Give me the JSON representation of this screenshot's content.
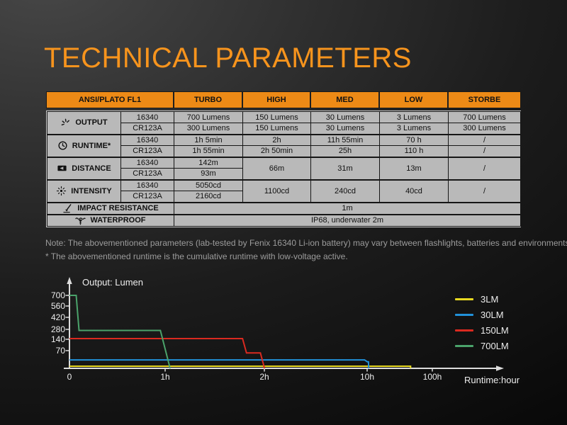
{
  "page_title": "TECHNICAL PARAMETERS",
  "colors": {
    "accent_orange": "#f7941d",
    "table_header_bg": "#ed8a16",
    "table_cell_bg": "#b9b9b9",
    "series_3lm": "#e8d921",
    "series_30lm": "#2191d9",
    "series_150lm": "#da2a20",
    "series_700lm": "#4ba36b"
  },
  "table": {
    "header": [
      "ANSI/PLATO FL1",
      "TURBO",
      "HIGH",
      "MED",
      "LOW",
      "STORBE"
    ],
    "rows": {
      "output": {
        "label": "OUTPUT",
        "batteries": [
          "16340",
          "CR123A"
        ],
        "values": [
          [
            "700 Lumens",
            "150 Lumens",
            "30 Lumens",
            "3 Lumens",
            "700 Lumens"
          ],
          [
            "300 Lumens",
            "150 Lumens",
            "30 Lumens",
            "3 Lumens",
            "300 Lumens"
          ]
        ]
      },
      "runtime": {
        "label": "RUNTIME*",
        "batteries": [
          "16340",
          "CR123A"
        ],
        "values": [
          [
            "1h 5min",
            "2h",
            "11h 55min",
            "70 h",
            "/"
          ],
          [
            "1h 55min",
            "2h 50min",
            "25h",
            "110 h",
            "/"
          ]
        ]
      },
      "distance": {
        "label": "DISTANCE",
        "batteries": [
          "16340",
          "CR123A"
        ],
        "turbo": [
          "142m",
          "93m"
        ],
        "merged": [
          "66m",
          "31m",
          "13m",
          "/"
        ]
      },
      "intensity": {
        "label": "INTENSITY",
        "batteries": [
          "16340",
          "CR123A"
        ],
        "turbo": [
          "5050cd",
          "2160cd"
        ],
        "merged": [
          "1100cd",
          "240cd",
          "40cd",
          "/"
        ]
      },
      "impact": {
        "label": "IMPACT RESISTANCE",
        "value": "1m"
      },
      "waterproof": {
        "label": "WATERPROOF",
        "value": "IP68, underwater 2m"
      }
    }
  },
  "notes": [
    "Note: The abovementioned parameters (lab-tested by Fenix 16340 Li-ion battery) may vary between flashlights, batteries and environments.",
    "* The abovementioned runtime is the cumulative runtime with low-voltage active."
  ],
  "chart_data": {
    "type": "line",
    "title": "Output: Lumen",
    "xlabel": "Runtime:hour",
    "x_ticks": [
      "0",
      "1h",
      "2h",
      "10h",
      "100h"
    ],
    "x_tick_values": [
      0,
      1,
      2,
      10,
      100
    ],
    "y_ticks": [
      700,
      560,
      420,
      280,
      140,
      70
    ],
    "legend_position": "right",
    "legend": [
      {
        "name": "3LM",
        "color": "#e8d921"
      },
      {
        "name": "30LM",
        "color": "#2191d9"
      },
      {
        "name": "150LM",
        "color": "#da2a20"
      },
      {
        "name": "700LM",
        "color": "#4ba36b"
      }
    ],
    "series": [
      {
        "name": "3LM",
        "color": "#e8d921",
        "points": [
          [
            0,
            3
          ],
          [
            70,
            3
          ],
          [
            70,
            0
          ]
        ]
      },
      {
        "name": "30LM",
        "color": "#2191d9",
        "points": [
          [
            0,
            30
          ],
          [
            9.8,
            30
          ],
          [
            10.3,
            22
          ],
          [
            11.9,
            22
          ],
          [
            12.2,
            0
          ]
        ]
      },
      {
        "name": "150LM",
        "color": "#da2a20",
        "points": [
          [
            0,
            150
          ],
          [
            1.78,
            150
          ],
          [
            1.82,
            60
          ],
          [
            1.96,
            60
          ],
          [
            2.01,
            0
          ]
        ]
      },
      {
        "name": "700LM",
        "color": "#4ba36b",
        "points": [
          [
            0,
            700
          ],
          [
            0.07,
            700
          ],
          [
            0.1,
            265
          ],
          [
            0.95,
            265
          ],
          [
            1.05,
            0
          ]
        ]
      }
    ]
  }
}
